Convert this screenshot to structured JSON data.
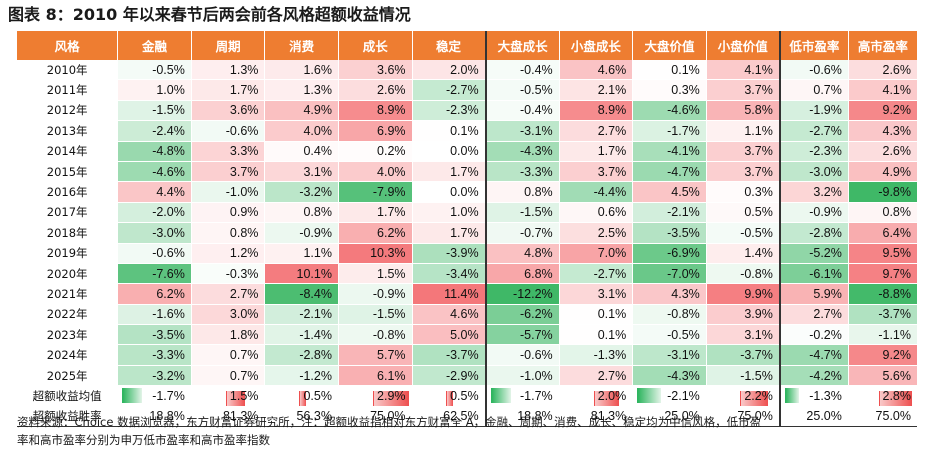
{
  "title": "图表 8：2010 年以来春节后两会前各风格超额收益情况",
  "table": {
    "headers": [
      "风格",
      "金融",
      "周期",
      "消费",
      "成长",
      "稳定",
      "大盘成长",
      "小盘成长",
      "大盘价值",
      "小盘价值",
      "低市盈率",
      "高市盈率"
    ],
    "rows": [
      {
        "label": "2010年",
        "values": [
          "-0.5%",
          "1.3%",
          "1.6%",
          "3.6%",
          "2.0%",
          "-0.4%",
          "4.6%",
          "0.1%",
          "4.1%",
          "-0.6%",
          "2.6%"
        ],
        "nums": [
          -0.5,
          1.3,
          1.6,
          3.6,
          2.0,
          -0.4,
          4.6,
          0.1,
          4.1,
          -0.6,
          2.6
        ]
      },
      {
        "label": "2011年",
        "values": [
          "1.0%",
          "1.7%",
          "1.3%",
          "2.6%",
          "-2.7%",
          "-0.5%",
          "2.1%",
          "0.3%",
          "3.7%",
          "0.7%",
          "4.1%"
        ],
        "nums": [
          1.0,
          1.7,
          1.3,
          2.6,
          -2.7,
          -0.5,
          2.1,
          0.3,
          3.7,
          0.7,
          4.1
        ]
      },
      {
        "label": "2012年",
        "values": [
          "-1.5%",
          "3.6%",
          "4.9%",
          "8.9%",
          "-2.3%",
          "-0.4%",
          "8.9%",
          "-4.6%",
          "5.8%",
          "-1.9%",
          "9.2%"
        ],
        "nums": [
          -1.5,
          3.6,
          4.9,
          8.9,
          -2.3,
          -0.4,
          8.9,
          -4.6,
          5.8,
          -1.9,
          9.2
        ]
      },
      {
        "label": "2013年",
        "values": [
          "-2.4%",
          "-0.6%",
          "4.0%",
          "6.9%",
          "0.1%",
          "-3.1%",
          "2.7%",
          "-1.7%",
          "1.1%",
          "-2.7%",
          "4.3%"
        ],
        "nums": [
          -2.4,
          -0.6,
          4.0,
          6.9,
          0.1,
          -3.1,
          2.7,
          -1.7,
          1.1,
          -2.7,
          4.3
        ]
      },
      {
        "label": "2014年",
        "values": [
          "-4.8%",
          "3.3%",
          "0.4%",
          "0.2%",
          "0.0%",
          "-4.3%",
          "1.7%",
          "-4.1%",
          "3.7%",
          "-2.3%",
          "2.6%"
        ],
        "nums": [
          -4.8,
          3.3,
          0.4,
          0.2,
          0.0,
          -4.3,
          1.7,
          -4.1,
          3.7,
          -2.3,
          2.6
        ]
      },
      {
        "label": "2015年",
        "values": [
          "-4.6%",
          "3.7%",
          "3.1%",
          "4.0%",
          "1.7%",
          "-3.3%",
          "3.7%",
          "-4.7%",
          "3.7%",
          "-3.0%",
          "4.9%"
        ],
        "nums": [
          -4.6,
          3.7,
          3.1,
          4.0,
          1.7,
          -3.3,
          3.7,
          -4.7,
          3.7,
          -3.0,
          4.9
        ]
      },
      {
        "label": "2016年",
        "values": [
          "4.4%",
          "-1.0%",
          "-3.2%",
          "-7.9%",
          "0.0%",
          "0.8%",
          "-4.4%",
          "4.5%",
          "0.3%",
          "3.2%",
          "-9.8%"
        ],
        "nums": [
          4.4,
          -1.0,
          -3.2,
          -7.9,
          0.0,
          0.8,
          -4.4,
          4.5,
          0.3,
          3.2,
          -9.8
        ]
      },
      {
        "label": "2017年",
        "values": [
          "-2.0%",
          "0.9%",
          "0.8%",
          "1.7%",
          "1.0%",
          "-1.5%",
          "0.6%",
          "-2.1%",
          "0.5%",
          "-0.9%",
          "0.8%"
        ],
        "nums": [
          -2.0,
          0.9,
          0.8,
          1.7,
          1.0,
          -1.5,
          0.6,
          -2.1,
          0.5,
          -0.9,
          0.8
        ]
      },
      {
        "label": "2018年",
        "values": [
          "-3.0%",
          "0.8%",
          "-0.9%",
          "6.2%",
          "1.7%",
          "-0.7%",
          "2.5%",
          "-3.5%",
          "-0.5%",
          "-2.8%",
          "6.4%"
        ],
        "nums": [
          -3.0,
          0.8,
          -0.9,
          6.2,
          1.7,
          -0.7,
          2.5,
          -3.5,
          -0.5,
          -2.8,
          6.4
        ]
      },
      {
        "label": "2019年",
        "values": [
          "-0.6%",
          "1.2%",
          "1.1%",
          "10.3%",
          "-3.9%",
          "4.8%",
          "7.0%",
          "-6.9%",
          "1.4%",
          "-5.2%",
          "9.5%"
        ],
        "nums": [
          -0.6,
          1.2,
          1.1,
          10.3,
          -3.9,
          4.8,
          7.0,
          -6.9,
          1.4,
          -5.2,
          9.5
        ]
      },
      {
        "label": "2020年",
        "values": [
          "-7.6%",
          "-0.3%",
          "10.1%",
          "1.5%",
          "-3.4%",
          "6.8%",
          "-2.7%",
          "-7.0%",
          "-0.8%",
          "-6.1%",
          "9.7%"
        ],
        "nums": [
          -7.6,
          -0.3,
          10.1,
          1.5,
          -3.4,
          6.8,
          -2.7,
          -7.0,
          -0.8,
          -6.1,
          9.7
        ]
      },
      {
        "label": "2021年",
        "values": [
          "6.2%",
          "2.7%",
          "-8.4%",
          "-0.9%",
          "11.4%",
          "-12.2%",
          "3.1%",
          "4.3%",
          "9.9%",
          "5.9%",
          "-8.8%"
        ],
        "nums": [
          6.2,
          2.7,
          -8.4,
          -0.9,
          11.4,
          -12.2,
          3.1,
          4.3,
          9.9,
          5.9,
          -8.8
        ]
      },
      {
        "label": "2022年",
        "values": [
          "-1.6%",
          "3.0%",
          "-2.1%",
          "-1.5%",
          "4.6%",
          "-6.2%",
          "0.1%",
          "-0.8%",
          "3.9%",
          "2.7%",
          "-3.7%"
        ],
        "nums": [
          -1.6,
          3.0,
          -2.1,
          -1.5,
          4.6,
          -6.2,
          0.1,
          -0.8,
          3.9,
          2.7,
          -3.7
        ]
      },
      {
        "label": "2023年",
        "values": [
          "-3.5%",
          "1.8%",
          "-1.4%",
          "-0.8%",
          "5.0%",
          "-5.7%",
          "0.1%",
          "-0.5%",
          "3.1%",
          "-0.2%",
          "-1.1%"
        ],
        "nums": [
          -3.5,
          1.8,
          -1.4,
          -0.8,
          5.0,
          -5.7,
          0.1,
          -0.5,
          3.1,
          -0.2,
          -1.1
        ]
      },
      {
        "label": "2024年",
        "values": [
          "-3.3%",
          "0.7%",
          "-2.8%",
          "5.7%",
          "-3.7%",
          "-0.6%",
          "-1.3%",
          "-3.1%",
          "-3.7%",
          "-4.7%",
          "9.2%"
        ],
        "nums": [
          -3.3,
          0.7,
          -2.8,
          5.7,
          -3.7,
          -0.6,
          -1.3,
          -3.1,
          -3.7,
          -4.7,
          9.2
        ]
      },
      {
        "label": "2025年",
        "values": [
          "-3.2%",
          "0.7%",
          "-1.2%",
          "6.1%",
          "-2.9%",
          "-1.0%",
          "2.7%",
          "-4.3%",
          "-1.5%",
          "-4.2%",
          "5.6%"
        ],
        "nums": [
          -3.2,
          0.7,
          -1.2,
          6.1,
          -2.9,
          -1.0,
          2.7,
          -4.3,
          -1.5,
          -4.2,
          5.6
        ]
      }
    ],
    "avg": {
      "label": "超额收益均值",
      "values": [
        "-1.7%",
        "1.5%",
        "0.5%",
        "2.9%",
        "0.5%",
        "-1.7%",
        "2.0%",
        "-2.1%",
        "2.2%",
        "-1.3%",
        "2.8%"
      ],
      "nums": [
        -1.7,
        1.5,
        0.5,
        2.9,
        0.5,
        -1.7,
        2.0,
        -2.1,
        2.2,
        -1.3,
        2.8
      ]
    },
    "win": {
      "label": "超额收益胜率",
      "values": [
        "18.8%",
        "81.3%",
        "56.3%",
        "75.0%",
        "62.5%",
        "18.8%",
        "81.3%",
        "25.0%",
        "75.0%",
        "25.0%",
        "75.0%"
      ],
      "highlight": [
        false,
        true,
        false,
        true,
        false,
        false,
        true,
        false,
        true,
        false,
        true
      ]
    }
  },
  "footer": {
    "line1": "资料来源：Choice 数据浏览器，东方财富证券研究所，注：超额收益指相对东方财富全 A，金融、周期、消费、成长、稳定均为中信风格，低市盈",
    "line2": "率和高市盈率分别为申万低市盈率和高市盈率指数"
  },
  "colors": {
    "header_bg": "#ee7d31",
    "positive": "#f4777a",
    "negative": "#3fb867",
    "win_highlight": "#e0332f"
  }
}
